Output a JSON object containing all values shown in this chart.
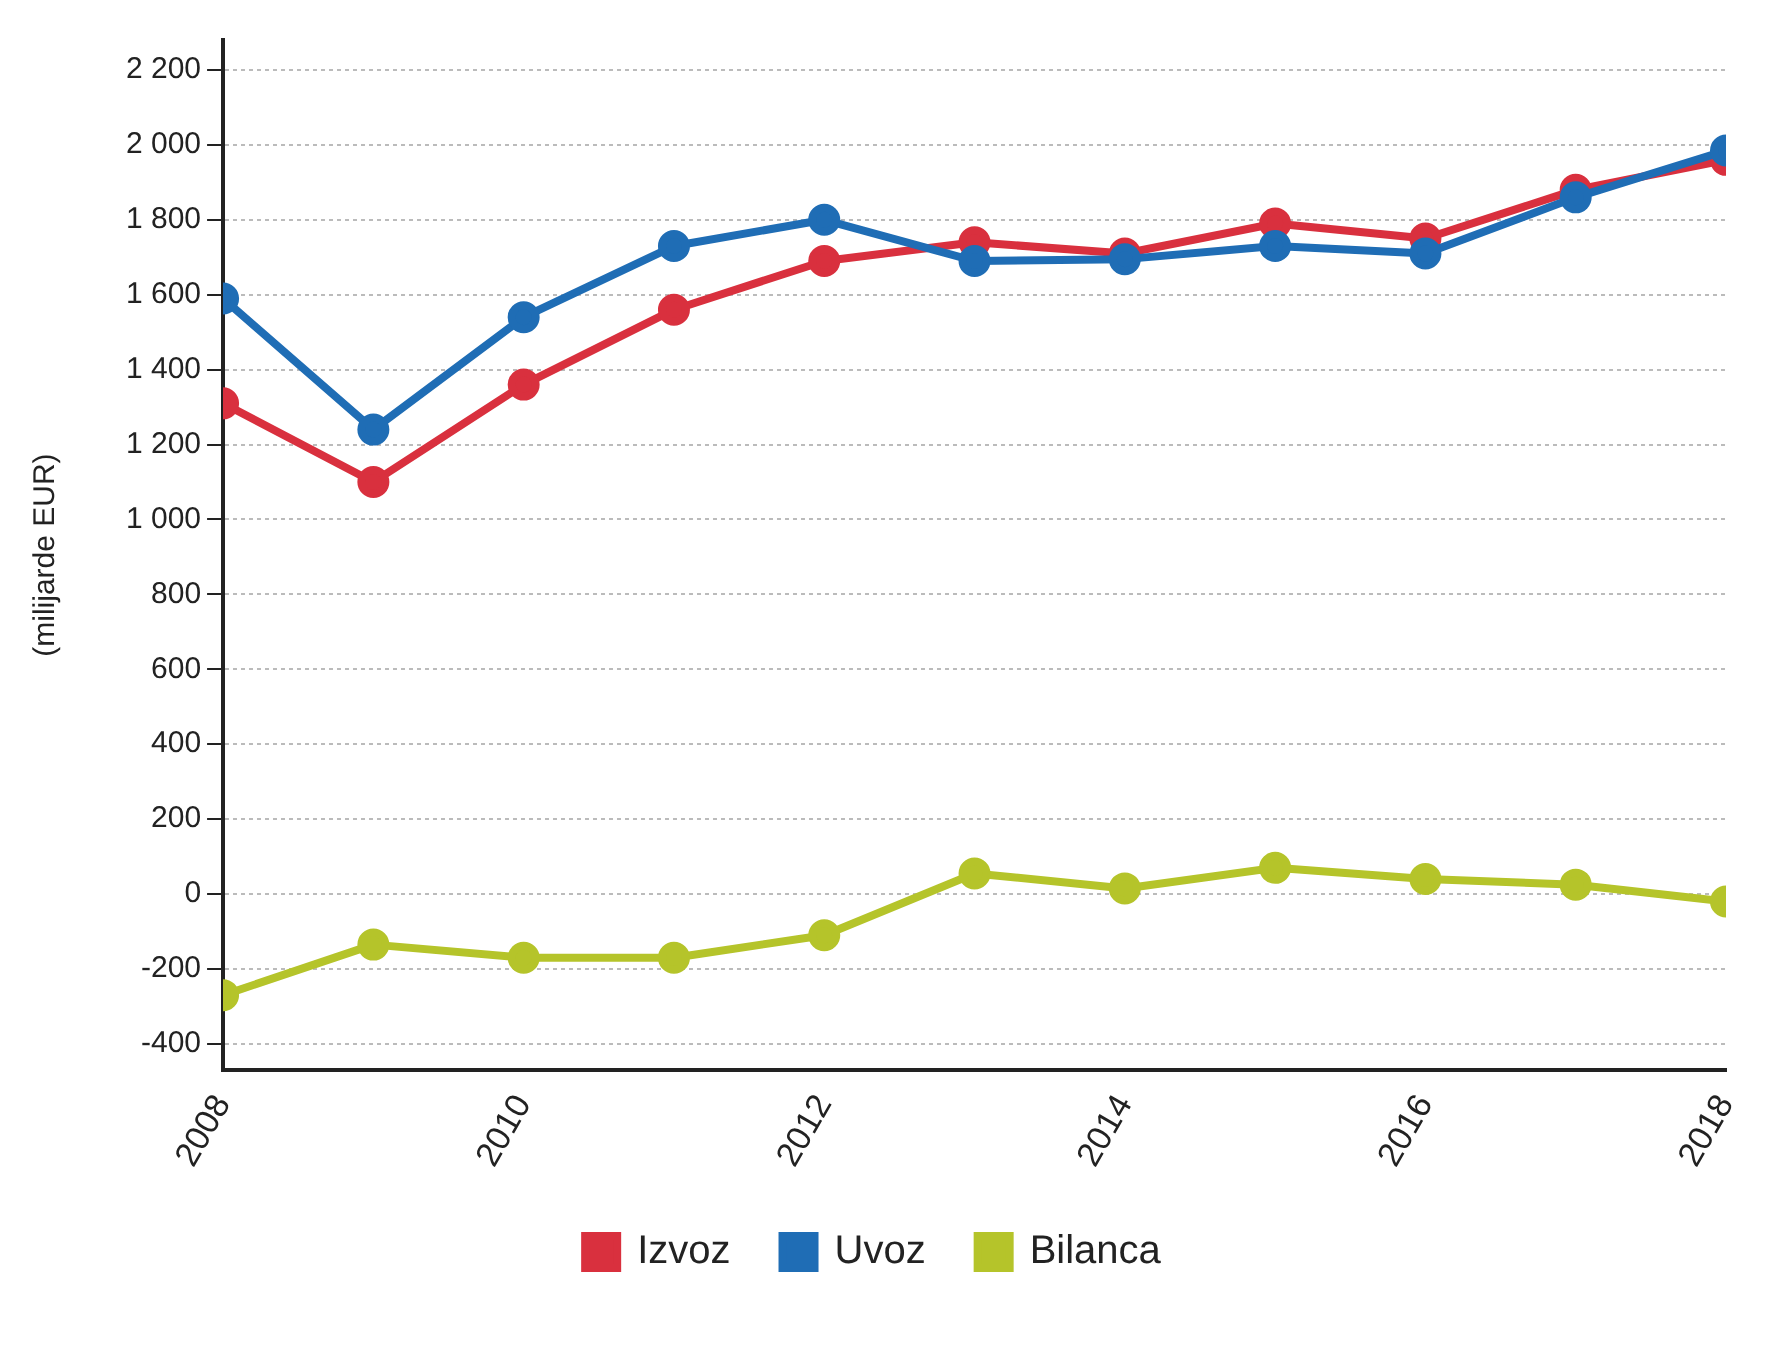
{
  "chart_data": {
    "type": "line",
    "ylabel": "(milijarde EUR)",
    "x": [
      2008,
      2009,
      2010,
      2011,
      2012,
      2013,
      2014,
      2015,
      2016,
      2017,
      2018
    ],
    "xlim": [
      2008,
      2018
    ],
    "xticks": [
      2008,
      2010,
      2012,
      2014,
      2016,
      2018
    ],
    "ylim": [
      -470,
      2280
    ],
    "yticks": [
      -400,
      -200,
      0,
      200,
      400,
      600,
      800,
      {
        "value": 1000,
        "label": "1 000"
      },
      {
        "value": 1200,
        "label": "1 200"
      },
      {
        "value": 1400,
        "label": "1 400"
      },
      {
        "value": 1600,
        "label": "1 600"
      },
      {
        "value": 1800,
        "label": "1 800"
      },
      {
        "value": 2000,
        "label": "2 000"
      },
      {
        "value": 2200,
        "label": "2 200"
      }
    ],
    "series": [
      {
        "name": "Izvoz",
        "color": "#d9303e",
        "values": [
          1310,
          1100,
          1360,
          1560,
          1690,
          1740,
          1710,
          1790,
          1750,
          1880,
          1960
        ]
      },
      {
        "name": "Uvoz",
        "color": "#1f6db5",
        "values": [
          1590,
          1240,
          1540,
          1730,
          1800,
          1690,
          1695,
          1730,
          1710,
          1860,
          1985
        ]
      },
      {
        "name": "Bilanca",
        "color": "#b5c42a",
        "values": [
          -270,
          -135,
          -170,
          -170,
          -110,
          55,
          15,
          70,
          40,
          25,
          -20
        ]
      }
    ],
    "grid": "y",
    "legend": "bottom",
    "marker": "circle",
    "line_style": "solid"
  }
}
